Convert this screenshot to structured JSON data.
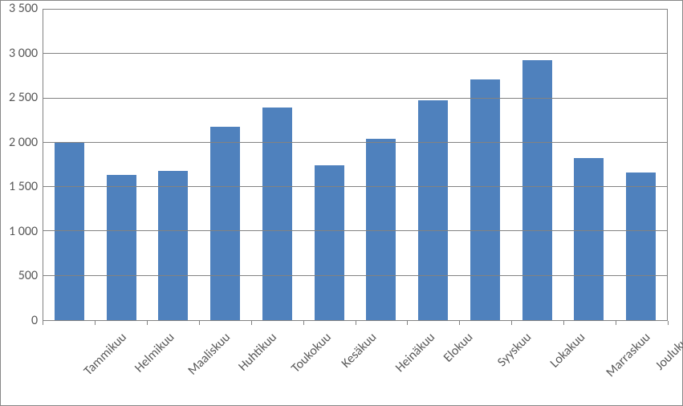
{
  "chart": {
    "type": "bar",
    "categories": [
      "Tammikuu",
      "Helmikuu",
      "Maaliskuu",
      "Huhtikuu",
      "Toukokuu",
      "Kesäkuu",
      "Heinäkuu",
      "Elokuu",
      "Syyskuu",
      "Lokakuu",
      "Marraskuu",
      "Joulukuu"
    ],
    "values": [
      2000,
      1640,
      1680,
      2180,
      2400,
      1750,
      2040,
      2480,
      2710,
      2930,
      1830,
      1660
    ],
    "bar_color": "#4f81bd",
    "ylim": [
      0,
      3500
    ],
    "ytick_step": 500,
    "ytick_labels": [
      "3 500",
      "3 000",
      "2 500",
      "2 000",
      "1 500",
      "1 000",
      "500",
      "0"
    ],
    "grid_color": "#828282",
    "border_color": "#888888",
    "plot_border_color": "#828282",
    "background_color": "#ffffff",
    "label_color": "#595959",
    "label_fontsize": 16,
    "bar_width": 0.57,
    "x_label_rotation": -45
  }
}
